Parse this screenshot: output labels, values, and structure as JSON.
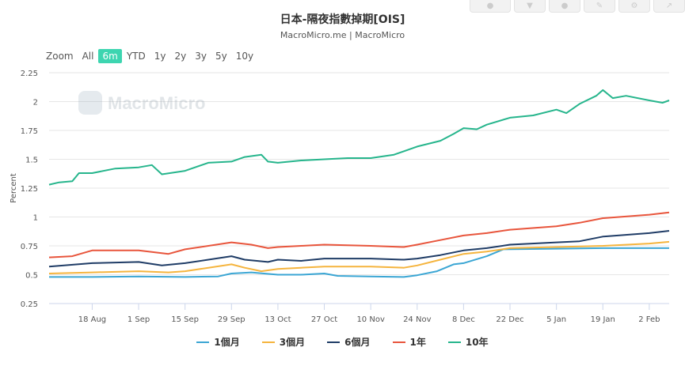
{
  "title": "日本-隔夜指數掉期[OIS]",
  "subtitle": "MacroMicro.me | MacroMicro",
  "watermark": "MacroMicro",
  "zoom": {
    "label": "Zoom",
    "options": [
      "All",
      "6m",
      "YTD",
      "1y",
      "2y",
      "3y",
      "5y",
      "10y"
    ],
    "active": "6m"
  },
  "toolbar_icons": [
    "share-icon",
    "download-icon",
    "user-icon",
    "edit-icon",
    "settings-icon",
    "export-icon"
  ],
  "chart_data": {
    "type": "line",
    "title": "日本-隔夜指數掉期[OIS]",
    "subtitle": "MacroMicro.me | MacroMicro",
    "ylabel": "Percent",
    "ylim": [
      0.25,
      2.25
    ],
    "yticks": [
      "0.25",
      "0.5",
      "0.75",
      "1",
      "1.25",
      "1.5",
      "1.75",
      "2",
      "2.25"
    ],
    "xlim": [
      "2023-08-05",
      "2024-02-08"
    ],
    "xticks": [
      {
        "date": "2023-08-18",
        "label": "18 Aug"
      },
      {
        "date": "2023-09-01",
        "label": "1 Sep"
      },
      {
        "date": "2023-09-15",
        "label": "15 Sep"
      },
      {
        "date": "2023-09-29",
        "label": "29 Sep"
      },
      {
        "date": "2023-10-13",
        "label": "13 Oct"
      },
      {
        "date": "2023-10-27",
        "label": "27 Oct"
      },
      {
        "date": "2023-11-10",
        "label": "10 Nov"
      },
      {
        "date": "2023-11-24",
        "label": "24 Nov"
      },
      {
        "date": "2023-12-08",
        "label": "8 Dec"
      },
      {
        "date": "2023-12-22",
        "label": "22 Dec"
      },
      {
        "date": "2024-01-05",
        "label": "5 Jan"
      },
      {
        "date": "2024-01-19",
        "label": "19 Jan"
      },
      {
        "date": "2024-02-02",
        "label": "2 Feb"
      }
    ],
    "grid": true,
    "legend": "bottom",
    "series": [
      {
        "name": "1個月",
        "color": "#3ba6d4",
        "points": [
          [
            "2023-08-05",
            0.48
          ],
          [
            "2023-08-18",
            0.48
          ],
          [
            "2023-09-01",
            0.485
          ],
          [
            "2023-09-15",
            0.48
          ],
          [
            "2023-09-25",
            0.485
          ],
          [
            "2023-09-29",
            0.51
          ],
          [
            "2023-10-05",
            0.52
          ],
          [
            "2023-10-13",
            0.5
          ],
          [
            "2023-10-20",
            0.5
          ],
          [
            "2023-10-27",
            0.51
          ],
          [
            "2023-10-31",
            0.49
          ],
          [
            "2023-11-10",
            0.485
          ],
          [
            "2023-11-20",
            0.48
          ],
          [
            "2023-11-24",
            0.495
          ],
          [
            "2023-11-30",
            0.53
          ],
          [
            "2023-12-05",
            0.59
          ],
          [
            "2023-12-08",
            0.6
          ],
          [
            "2023-12-15",
            0.66
          ],
          [
            "2023-12-20",
            0.72
          ],
          [
            "2024-01-05",
            0.725
          ],
          [
            "2024-01-19",
            0.73
          ],
          [
            "2024-02-02",
            0.73
          ],
          [
            "2024-02-08",
            0.73
          ]
        ]
      },
      {
        "name": "3個月",
        "color": "#f5b43d",
        "points": [
          [
            "2023-08-05",
            0.51
          ],
          [
            "2023-08-18",
            0.52
          ],
          [
            "2023-09-01",
            0.53
          ],
          [
            "2023-09-10",
            0.52
          ],
          [
            "2023-09-15",
            0.53
          ],
          [
            "2023-09-29",
            0.59
          ],
          [
            "2023-10-03",
            0.56
          ],
          [
            "2023-10-08",
            0.53
          ],
          [
            "2023-10-13",
            0.55
          ],
          [
            "2023-10-20",
            0.56
          ],
          [
            "2023-10-27",
            0.57
          ],
          [
            "2023-11-10",
            0.57
          ],
          [
            "2023-11-20",
            0.56
          ],
          [
            "2023-11-24",
            0.58
          ],
          [
            "2023-12-01",
            0.63
          ],
          [
            "2023-12-08",
            0.68
          ],
          [
            "2023-12-15",
            0.7
          ],
          [
            "2023-12-22",
            0.73
          ],
          [
            "2024-01-05",
            0.74
          ],
          [
            "2024-01-19",
            0.75
          ],
          [
            "2024-02-02",
            0.77
          ],
          [
            "2024-02-08",
            0.785
          ]
        ]
      },
      {
        "name": "6個月",
        "color": "#1f3c66",
        "points": [
          [
            "2023-08-05",
            0.57
          ],
          [
            "2023-08-18",
            0.6
          ],
          [
            "2023-09-01",
            0.61
          ],
          [
            "2023-09-08",
            0.58
          ],
          [
            "2023-09-15",
            0.6
          ],
          [
            "2023-09-29",
            0.66
          ],
          [
            "2023-10-03",
            0.63
          ],
          [
            "2023-10-10",
            0.61
          ],
          [
            "2023-10-13",
            0.63
          ],
          [
            "2023-10-20",
            0.62
          ],
          [
            "2023-10-27",
            0.64
          ],
          [
            "2023-11-10",
            0.64
          ],
          [
            "2023-11-20",
            0.63
          ],
          [
            "2023-11-24",
            0.64
          ],
          [
            "2023-12-01",
            0.67
          ],
          [
            "2023-12-08",
            0.71
          ],
          [
            "2023-12-15",
            0.73
          ],
          [
            "2023-12-22",
            0.76
          ],
          [
            "2024-01-05",
            0.78
          ],
          [
            "2024-01-12",
            0.79
          ],
          [
            "2024-01-19",
            0.83
          ],
          [
            "2024-02-02",
            0.86
          ],
          [
            "2024-02-08",
            0.88
          ]
        ]
      },
      {
        "name": "1年",
        "color": "#e8553c",
        "points": [
          [
            "2023-08-05",
            0.65
          ],
          [
            "2023-08-12",
            0.66
          ],
          [
            "2023-08-18",
            0.71
          ],
          [
            "2023-09-01",
            0.71
          ],
          [
            "2023-09-10",
            0.68
          ],
          [
            "2023-09-15",
            0.72
          ],
          [
            "2023-09-29",
            0.78
          ],
          [
            "2023-10-05",
            0.76
          ],
          [
            "2023-10-10",
            0.73
          ],
          [
            "2023-10-13",
            0.74
          ],
          [
            "2023-10-20",
            0.75
          ],
          [
            "2023-10-27",
            0.76
          ],
          [
            "2023-11-10",
            0.75
          ],
          [
            "2023-11-20",
            0.74
          ],
          [
            "2023-11-24",
            0.76
          ],
          [
            "2023-12-01",
            0.8
          ],
          [
            "2023-12-08",
            0.84
          ],
          [
            "2023-12-15",
            0.86
          ],
          [
            "2023-12-22",
            0.89
          ],
          [
            "2024-01-05",
            0.92
          ],
          [
            "2024-01-12",
            0.95
          ],
          [
            "2024-01-19",
            0.99
          ],
          [
            "2024-02-02",
            1.02
          ],
          [
            "2024-02-08",
            1.04
          ]
        ]
      },
      {
        "name": "10年",
        "color": "#26b58c",
        "points": [
          [
            "2023-08-05",
            1.28
          ],
          [
            "2023-08-08",
            1.3
          ],
          [
            "2023-08-12",
            1.31
          ],
          [
            "2023-08-14",
            1.38
          ],
          [
            "2023-08-18",
            1.38
          ],
          [
            "2023-08-25",
            1.42
          ],
          [
            "2023-09-01",
            1.43
          ],
          [
            "2023-09-05",
            1.45
          ],
          [
            "2023-09-08",
            1.37
          ],
          [
            "2023-09-15",
            1.4
          ],
          [
            "2023-09-22",
            1.47
          ],
          [
            "2023-09-29",
            1.48
          ],
          [
            "2023-10-03",
            1.52
          ],
          [
            "2023-10-08",
            1.54
          ],
          [
            "2023-10-10",
            1.48
          ],
          [
            "2023-10-13",
            1.47
          ],
          [
            "2023-10-20",
            1.49
          ],
          [
            "2023-10-27",
            1.5
          ],
          [
            "2023-11-03",
            1.51
          ],
          [
            "2023-11-10",
            1.51
          ],
          [
            "2023-11-17",
            1.54
          ],
          [
            "2023-11-24",
            1.61
          ],
          [
            "2023-12-01",
            1.66
          ],
          [
            "2023-12-05",
            1.72
          ],
          [
            "2023-12-08",
            1.77
          ],
          [
            "2023-12-12",
            1.76
          ],
          [
            "2023-12-15",
            1.8
          ],
          [
            "2023-12-22",
            1.86
          ],
          [
            "2023-12-29",
            1.88
          ],
          [
            "2024-01-05",
            1.93
          ],
          [
            "2024-01-08",
            1.9
          ],
          [
            "2024-01-12",
            1.98
          ],
          [
            "2024-01-17",
            2.05
          ],
          [
            "2024-01-19",
            2.1
          ],
          [
            "2024-01-22",
            2.03
          ],
          [
            "2024-01-26",
            2.05
          ],
          [
            "2024-02-02",
            2.01
          ],
          [
            "2024-02-06",
            1.99
          ],
          [
            "2024-02-08",
            2.01
          ]
        ]
      }
    ]
  }
}
